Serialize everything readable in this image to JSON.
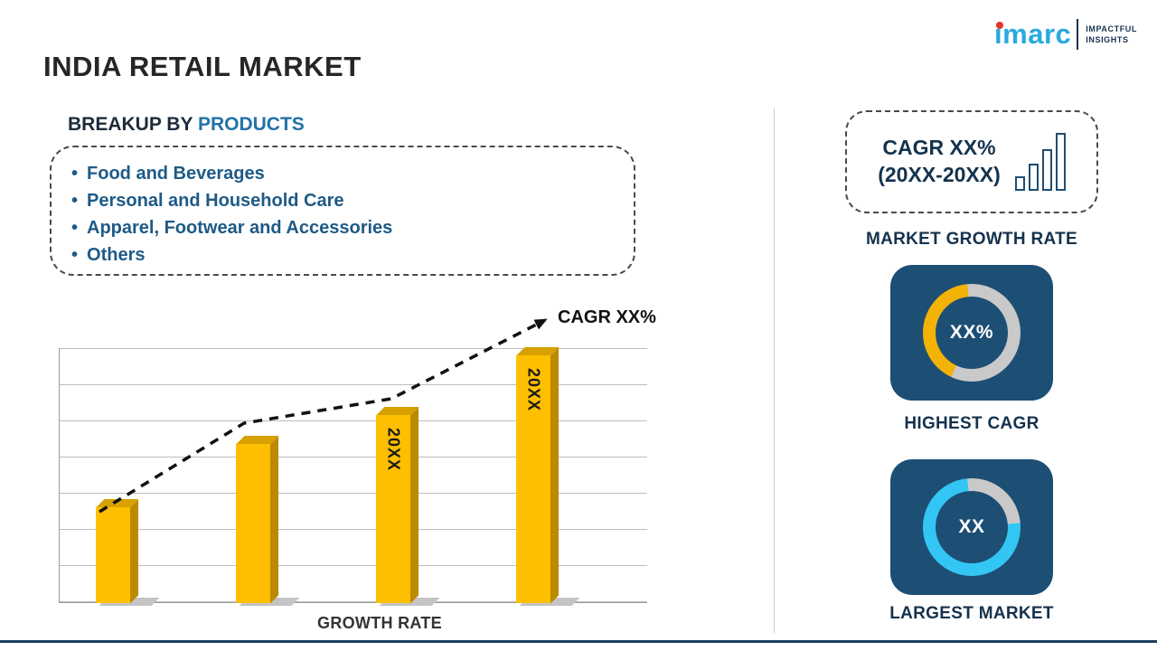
{
  "header": {
    "title": "INDIA RETAIL MARKET",
    "logo": {
      "brand": "imarc",
      "tagline_line1": "IMPACTFUL",
      "tagline_line2": "INSIGHTS",
      "brand_color": "#29a9e0",
      "dot_color": "#e63229"
    }
  },
  "left": {
    "heading_prefix": "BREAKUP BY",
    "heading_accent": "PRODUCTS",
    "products": [
      "Food and Beverages",
      "Personal and Household Care",
      "Apparel, Footwear and Accessories",
      "Others"
    ]
  },
  "right": {
    "growth_box": {
      "line1": "CAGR XX%",
      "line2": "(20XX-20XX)"
    },
    "growth_label": "MARKET GROWTH RATE",
    "cards": [
      {
        "value": "XX%",
        "label": "HIGHEST CAGR",
        "accent_color": "#f2b306",
        "ring_color": "#c9c9c9",
        "accent_start_deg": 205,
        "accent_sweep_deg": 150,
        "bg": "#1d4e74"
      },
      {
        "value": "XX",
        "label": "LARGEST MARKET",
        "accent_color": "#33c6f4",
        "ring_color": "#c9c9c9",
        "accent_start_deg": 85,
        "accent_sweep_deg": 270,
        "bg": "#1d4e74"
      }
    ]
  },
  "chart_data": {
    "type": "bar",
    "title": "",
    "xlabel": "GROWTH RATE",
    "ylabel": "",
    "categories": [
      "",
      "",
      "20XX",
      "20XX"
    ],
    "values": [
      106,
      176,
      208,
      274
    ],
    "value_units": "relative height (no numeric axis labels shown; values are placeholders)",
    "bar_color": "#FDBF00",
    "grid": "horizontal gridlines, on",
    "trend": {
      "label": "CAGR XX%",
      "style": "black dashed upward arrow across bar tops"
    },
    "donuts": [
      {
        "label": "HIGHEST CAGR",
        "value": "XX%",
        "filled_percent_est": 42,
        "color": "#f2b306"
      },
      {
        "label": "LARGEST MARKET",
        "value": "XX",
        "filled_percent_est": 75,
        "color": "#33c6f4"
      }
    ]
  }
}
